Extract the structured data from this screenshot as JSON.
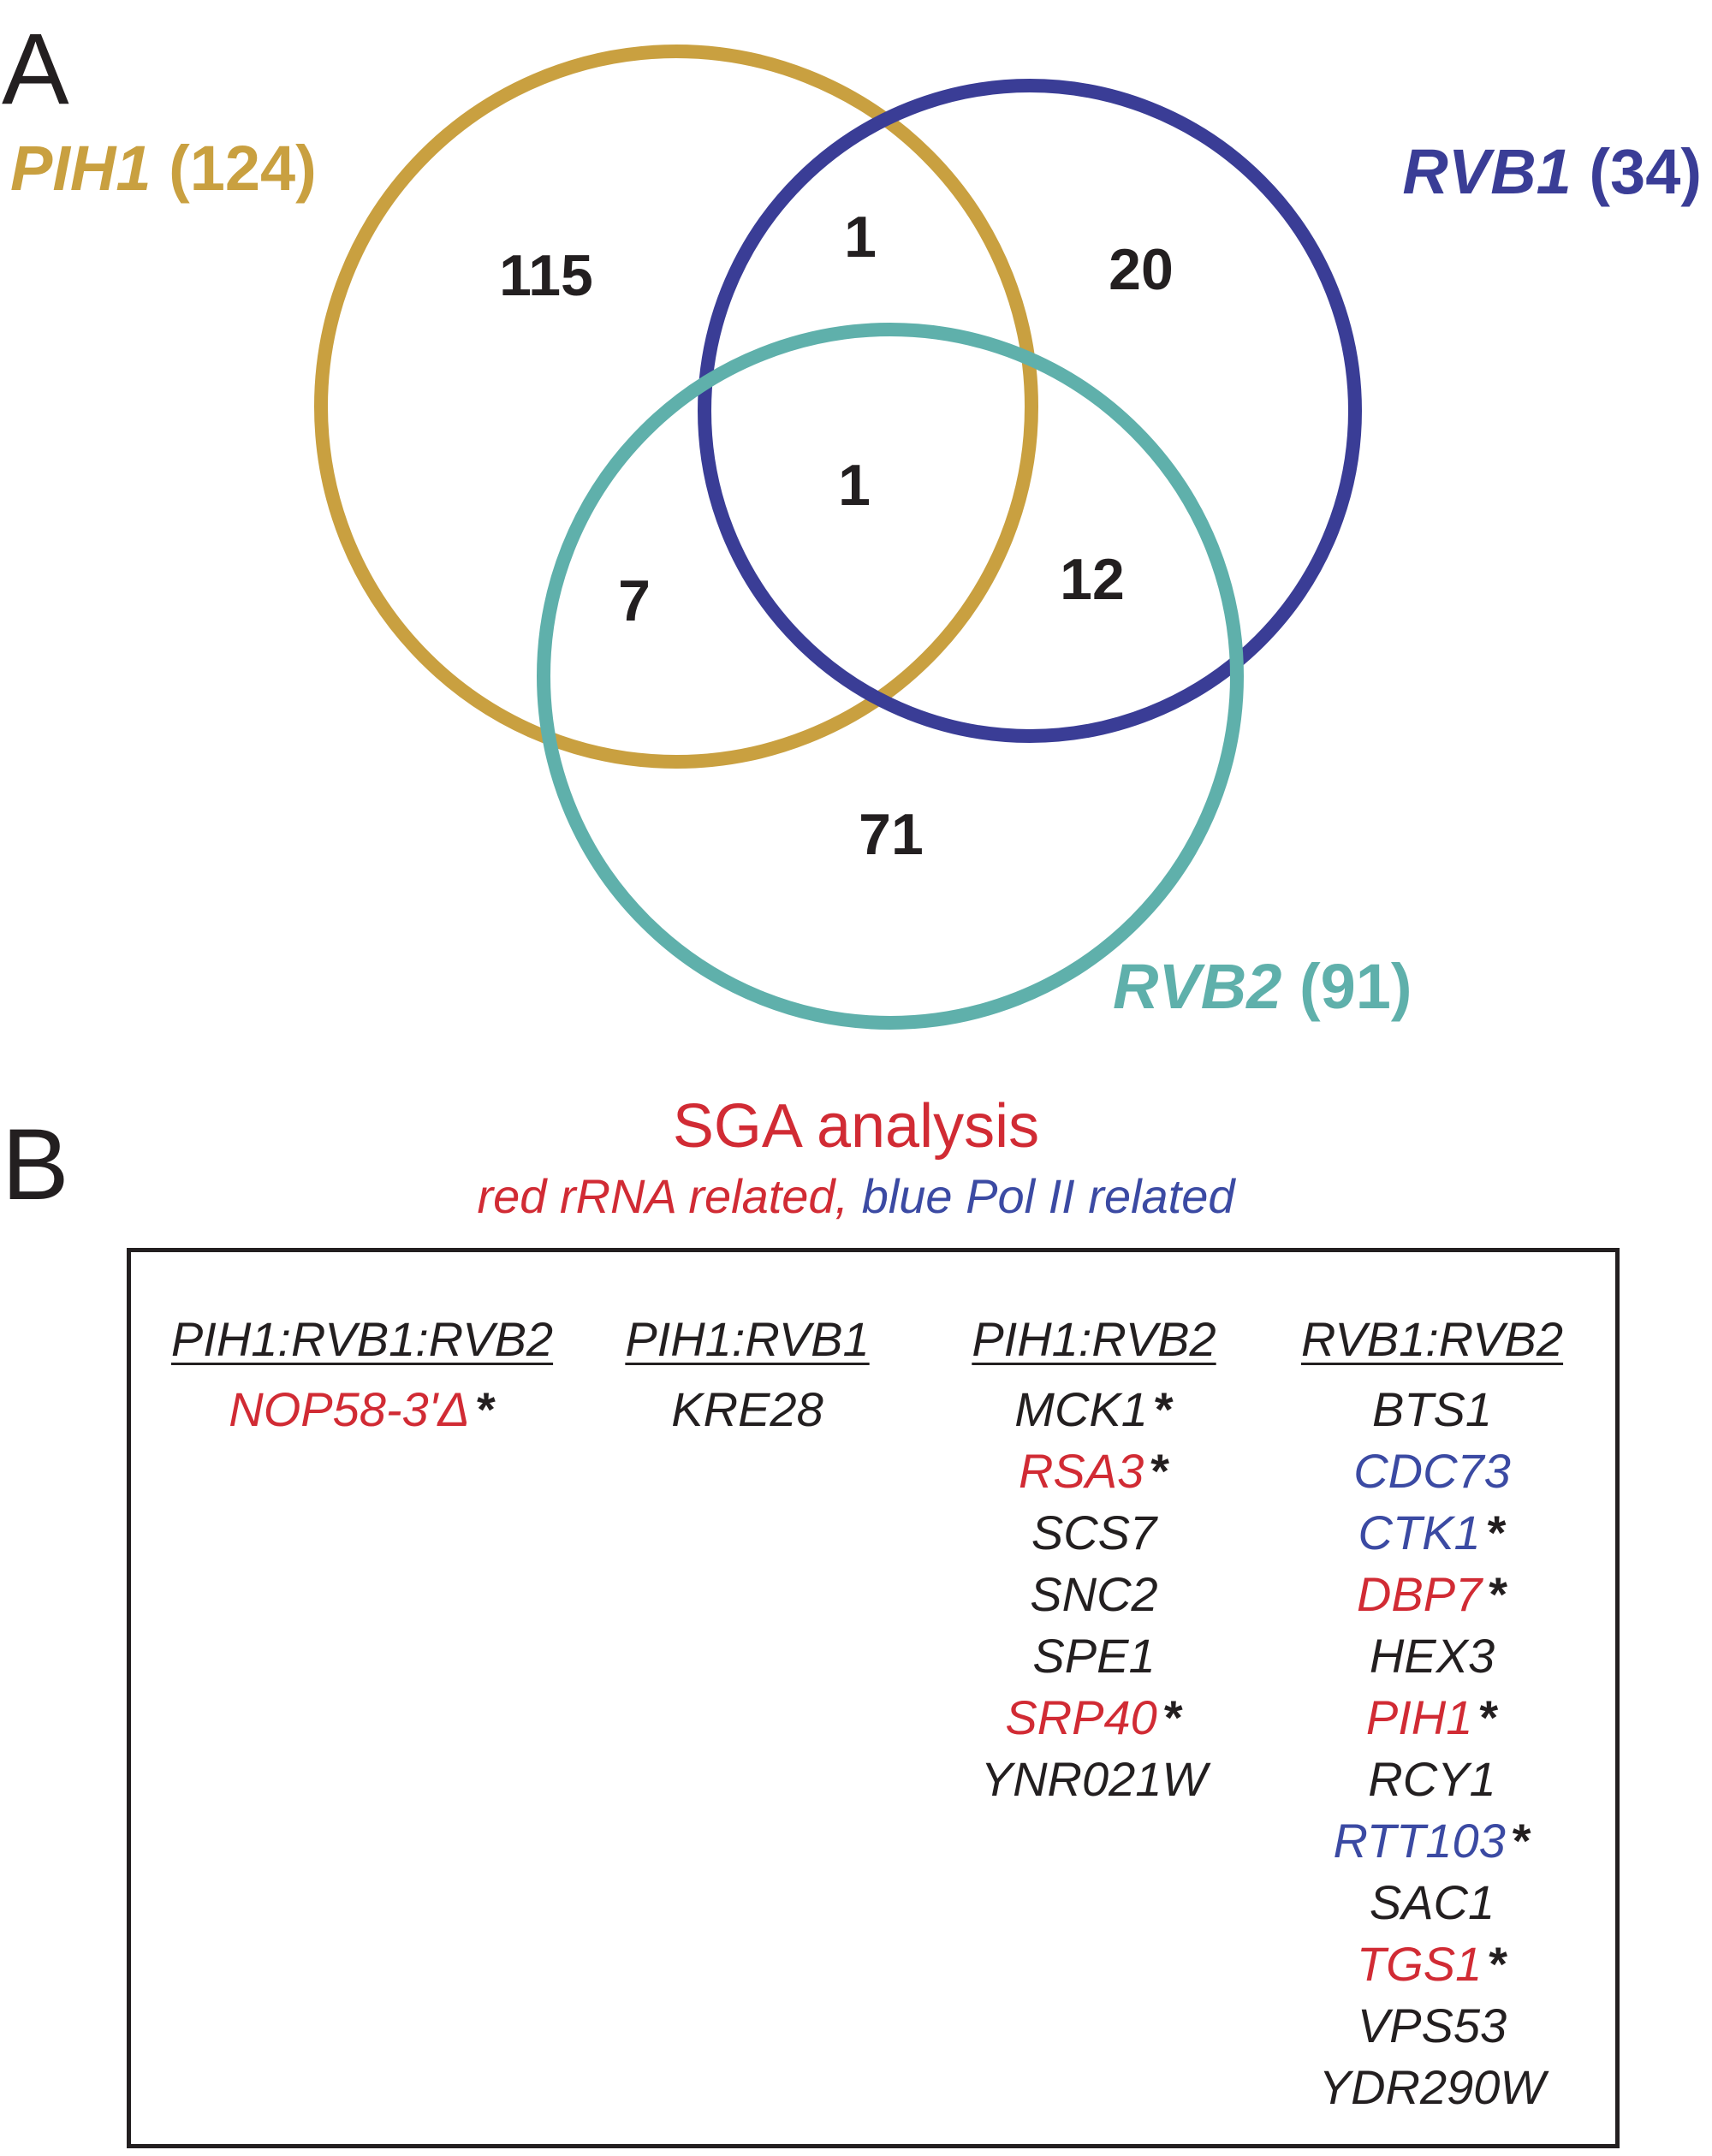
{
  "panel_a": {
    "letter": "A",
    "sets": [
      {
        "id": "pih1",
        "gene": "PIH1",
        "count": "(124)",
        "color": "#c9a040"
      },
      {
        "id": "rvb1",
        "gene": "RVB1",
        "count": "(34)",
        "color": "#3a3d96"
      },
      {
        "id": "rvb2",
        "gene": "RVB2",
        "count": "(91)",
        "color": "#5fb0ab"
      }
    ],
    "regions": {
      "pih1_only": "115",
      "pih1_rvb1": "1",
      "rvb1_only": "20",
      "all_three": "1",
      "pih1_rvb2": "7",
      "rvb1_rvb2": "12",
      "rvb2_only": "71"
    }
  },
  "panel_b": {
    "letter": "B",
    "title": "SGA analysis",
    "subtitle_red": "red rRNA related,",
    "subtitle_blue": "blue Pol II related",
    "colors": {
      "red": "#d12b34",
      "blue": "#3b4aa3",
      "black": "#231f20"
    },
    "columns": [
      {
        "header": "PIH1:RVB1:RVB2",
        "genes": [
          {
            "name": "NOP58-3'Δ",
            "color": "red",
            "star": "*"
          }
        ]
      },
      {
        "header": "PIH1:RVB1",
        "genes": [
          {
            "name": "KRE28",
            "color": "black",
            "star": ""
          }
        ]
      },
      {
        "header": "PIH1:RVB2",
        "genes": [
          {
            "name": "MCK1",
            "color": "black",
            "star": "*"
          },
          {
            "name": "RSA3",
            "color": "red",
            "star": "*"
          },
          {
            "name": "SCS7",
            "color": "black",
            "star": ""
          },
          {
            "name": "SNC2",
            "color": "black",
            "star": ""
          },
          {
            "name": "SPE1",
            "color": "black",
            "star": ""
          },
          {
            "name": "SRP40",
            "color": "red",
            "star": "*"
          },
          {
            "name": "YNR021W",
            "color": "black",
            "star": ""
          }
        ]
      },
      {
        "header": "RVB1:RVB2",
        "genes": [
          {
            "name": "BTS1",
            "color": "black",
            "star": ""
          },
          {
            "name": "CDC73",
            "color": "blue",
            "star": ""
          },
          {
            "name": "CTK1",
            "color": "blue",
            "star": "*"
          },
          {
            "name": "DBP7",
            "color": "red",
            "star": "*"
          },
          {
            "name": "HEX3",
            "color": "black",
            "star": ""
          },
          {
            "name": "PIH1",
            "color": "red",
            "star": "*"
          },
          {
            "name": "RCY1",
            "color": "black",
            "star": ""
          },
          {
            "name": "RTT103",
            "color": "blue",
            "star": "*"
          },
          {
            "name": "SAC1",
            "color": "black",
            "star": ""
          },
          {
            "name": "TGS1",
            "color": "red",
            "star": "*"
          },
          {
            "name": "VPS53",
            "color": "black",
            "star": ""
          },
          {
            "name": "YDR290W",
            "color": "black",
            "star": ""
          }
        ]
      }
    ]
  }
}
